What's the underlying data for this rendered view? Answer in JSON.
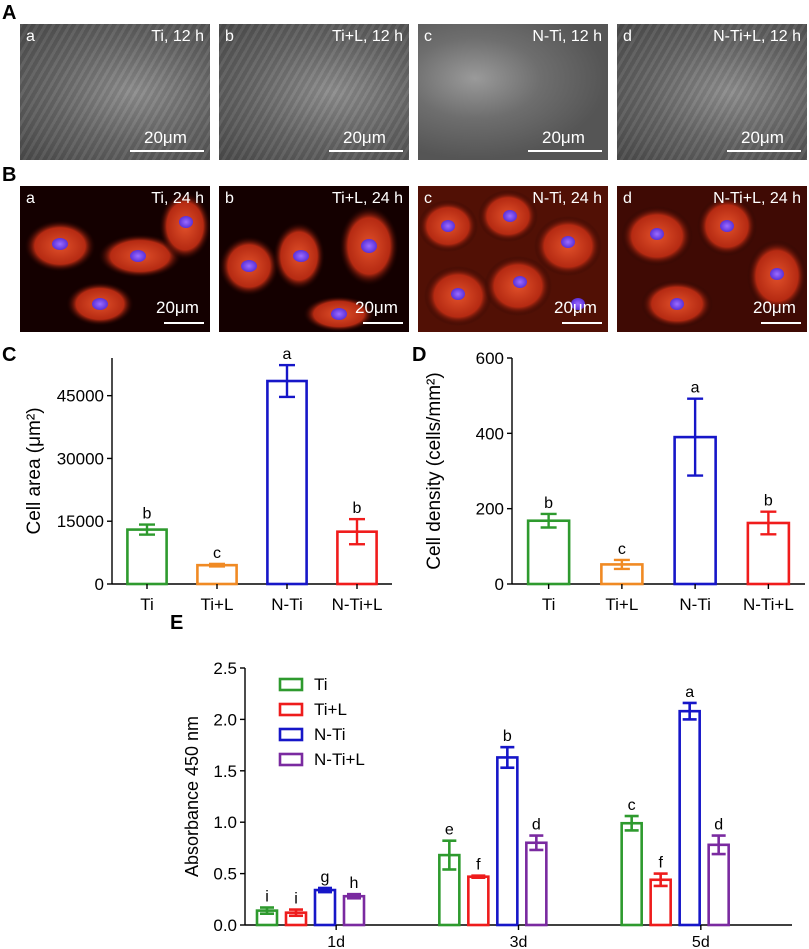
{
  "panel_labels": {
    "A": "A",
    "B": "B",
    "C": "C",
    "D": "D",
    "E": "E"
  },
  "row_a": [
    {
      "letter": "a",
      "title": "Ti, 12 h",
      "scale": "20μm"
    },
    {
      "letter": "b",
      "title": "Ti+L, 12 h",
      "scale": "20μm"
    },
    {
      "letter": "c",
      "title": "N-Ti, 12 h",
      "scale": "20μm"
    },
    {
      "letter": "d",
      "title": "N-Ti+L, 12 h",
      "scale": "20μm"
    }
  ],
  "row_b": [
    {
      "letter": "a",
      "title": "Ti, 24 h",
      "scale": "20μm"
    },
    {
      "letter": "b",
      "title": "Ti+L, 24 h",
      "scale": "20μm"
    },
    {
      "letter": "c",
      "title": "N-Ti, 24 h",
      "scale": "20μm"
    },
    {
      "letter": "d",
      "title": "N-Ti+L, 24 h",
      "scale": "20μm"
    }
  ],
  "colors": {
    "Ti": "#2e9a2e",
    "Ti+L": "#f08a24",
    "Ti+L_E": "#ee1c1c",
    "N-Ti": "#1616c8",
    "N-Ti+L": "#f01c1c",
    "N-Ti+L_E": "#7a2aa0"
  },
  "chart_data": [
    {
      "id": "C",
      "type": "bar",
      "ylabel": "Cell area (μm²)",
      "categories": [
        "Ti",
        "Ti+L",
        "N-Ti",
        "N-Ti+L"
      ],
      "values": [
        13000,
        4500,
        48500,
        12500
      ],
      "errors": [
        1200,
        300,
        3800,
        3000
      ],
      "letters": [
        "b",
        "c",
        "a",
        "b"
      ],
      "yticks": [
        0,
        15000,
        30000,
        45000
      ],
      "ylim": [
        0,
        54000
      ]
    },
    {
      "id": "D",
      "type": "bar",
      "ylabel": "Cell density (cells/mm²)",
      "categories": [
        "Ti",
        "Ti+L",
        "N-Ti",
        "N-Ti+L"
      ],
      "values": [
        168,
        52,
        390,
        162
      ],
      "errors": [
        18,
        12,
        102,
        30
      ],
      "letters": [
        "b",
        "c",
        "a",
        "b"
      ],
      "yticks": [
        0,
        200,
        400,
        600
      ],
      "ylim": [
        0,
        600
      ]
    },
    {
      "id": "E",
      "type": "bar",
      "ylabel": "Absorbance 450 nm",
      "categories": [
        "1d",
        "3d",
        "5d"
      ],
      "series": [
        {
          "name": "Ti",
          "values": [
            0.14,
            0.68,
            0.99
          ],
          "errors": [
            0.03,
            0.14,
            0.07
          ],
          "letters": [
            "i",
            "e",
            "c"
          ]
        },
        {
          "name": "Ti+L",
          "values": [
            0.12,
            0.47,
            0.44
          ],
          "errors": [
            0.03,
            0.01,
            0.06
          ],
          "letters": [
            "i",
            "f",
            "f"
          ]
        },
        {
          "name": "N-Ti",
          "values": [
            0.34,
            1.63,
            2.08
          ],
          "errors": [
            0.02,
            0.1,
            0.08
          ],
          "letters": [
            "g",
            "b",
            "a"
          ]
        },
        {
          "name": "N-Ti+L",
          "values": [
            0.28,
            0.8,
            0.78
          ],
          "errors": [
            0.02,
            0.07,
            0.09
          ],
          "letters": [
            "h",
            "d",
            "d"
          ]
        }
      ],
      "yticks": [
        "0.0",
        "0.5",
        "1.0",
        "1.5",
        "2.0",
        "2.5"
      ],
      "ylim": [
        0,
        2.5
      ],
      "legend": "top-left"
    }
  ]
}
